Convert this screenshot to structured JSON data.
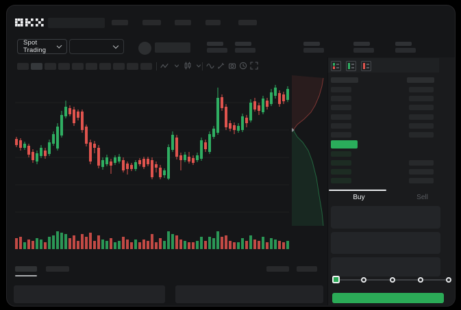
{
  "window": {
    "title_logo": "OKX"
  },
  "colors": {
    "up": "#2fae62",
    "down": "#e0544e",
    "accent": "#2bab57",
    "screen_bg": "#151618",
    "panel_bg": "#1a1b1d",
    "spread_green": "#2aad5b"
  },
  "market_selector": {
    "label": "Spot Trading"
  },
  "toolbar": {
    "icon_names": [
      "zigzag-icon",
      "chevron-down-icon",
      "candles-icon",
      "chevron-down-icon",
      "wave-icon",
      "pencil-icon",
      "camera-icon",
      "clock-icon",
      "fullscreen-icon"
    ]
  },
  "orderbook": {
    "view_modes": [
      "book-split-view",
      "book-bids-view",
      "book-asks-view"
    ],
    "ask_row_count": 6,
    "bid_row_count": 4
  },
  "trade_tabs": {
    "buy": "Buy",
    "sell": "Sell"
  },
  "trade_form": {
    "field_count": 3,
    "slider_stops": [
      0,
      25,
      50,
      75,
      100
    ],
    "slider_value": 0,
    "submit_label": ""
  },
  "skeleton": {
    "topnav_count": 5,
    "toolbar_block_count": 10,
    "stat_group_count": 5
  },
  "chart_data": [
    {
      "type": "candlestick",
      "title": "",
      "note": "skeleton trading chart - no axis labels visible in screenshot",
      "units": "relative price units",
      "candle_format": "[open, high, low, close, volume]",
      "x_step": 6,
      "grid_lines": 5,
      "candles": [
        [
          137,
          140,
          125,
          128,
          8
        ],
        [
          135,
          138,
          120,
          124,
          9
        ],
        [
          124,
          133,
          121,
          130,
          5
        ],
        [
          127,
          130,
          110,
          114,
          7
        ],
        [
          118,
          122,
          102,
          106,
          6
        ],
        [
          104,
          120,
          100,
          116,
          8
        ],
        [
          112,
          128,
          109,
          124,
          7
        ],
        [
          120,
          124,
          108,
          112,
          5
        ],
        [
          115,
          136,
          112,
          132,
          9
        ],
        [
          130,
          148,
          127,
          144,
          10
        ],
        [
          123,
          160,
          120,
          155,
          13
        ],
        [
          142,
          178,
          139,
          172,
          12
        ],
        [
          170,
          193,
          167,
          184,
          11
        ],
        [
          182,
          186,
          170,
          173,
          8
        ],
        [
          180,
          184,
          156,
          160,
          10
        ],
        [
          177,
          180,
          164,
          168,
          6
        ],
        [
          177,
          180,
          146,
          150,
          11
        ],
        [
          155,
          158,
          126,
          130,
          9
        ],
        [
          132,
          136,
          100,
          104,
          12
        ],
        [
          130,
          134,
          116,
          124,
          6
        ],
        [
          124,
          128,
          94,
          98,
          10
        ],
        [
          96,
          110,
          92,
          106,
          7
        ],
        [
          100,
          114,
          97,
          110,
          6
        ],
        [
          104,
          108,
          86,
          98,
          8
        ],
        [
          102,
          113,
          99,
          110,
          5
        ],
        [
          104,
          115,
          101,
          111,
          6
        ],
        [
          106,
          110,
          88,
          91,
          9
        ],
        [
          101,
          104,
          85,
          93,
          7
        ],
        [
          99,
          102,
          90,
          93,
          5
        ],
        [
          93,
          106,
          90,
          103,
          7
        ],
        [
          106,
          109,
          97,
          100,
          5
        ],
        [
          108,
          111,
          93,
          96,
          7
        ],
        [
          108,
          111,
          97,
          100,
          6
        ],
        [
          106,
          110,
          78,
          81,
          11
        ],
        [
          100,
          104,
          88,
          95,
          5
        ],
        [
          95,
          99,
          78,
          81,
          8
        ],
        [
          84,
          94,
          80,
          91,
          6
        ],
        [
          79,
          129,
          77,
          125,
          13
        ],
        [
          121,
          148,
          118,
          143,
          11
        ],
        [
          139,
          143,
          107,
          111,
          10
        ],
        [
          113,
          117,
          91,
          106,
          7
        ],
        [
          106,
          118,
          103,
          114,
          6
        ],
        [
          111,
          118,
          101,
          104,
          5
        ],
        [
          109,
          113,
          99,
          102,
          5
        ],
        [
          106,
          117,
          103,
          113,
          6
        ],
        [
          108,
          139,
          105,
          135,
          9
        ],
        [
          132,
          136,
          118,
          122,
          6
        ],
        [
          118,
          148,
          115,
          144,
          9
        ],
        [
          140,
          156,
          137,
          152,
          8
        ],
        [
          146,
          212,
          143,
          197,
          13
        ],
        [
          198,
          202,
          178,
          182,
          9
        ],
        [
          184,
          188,
          150,
          154,
          10
        ],
        [
          160,
          164,
          148,
          152,
          6
        ],
        [
          157,
          161,
          144,
          150,
          5
        ],
        [
          149,
          160,
          146,
          156,
          5
        ],
        [
          150,
          174,
          147,
          170,
          8
        ],
        [
          168,
          172,
          154,
          160,
          6
        ],
        [
          164,
          195,
          161,
          190,
          10
        ],
        [
          192,
          197,
          177,
          180,
          7
        ],
        [
          186,
          190,
          172,
          178,
          6
        ],
        [
          176,
          200,
          173,
          196,
          9
        ],
        [
          193,
          197,
          180,
          184,
          5
        ],
        [
          188,
          210,
          185,
          205,
          8
        ],
        [
          200,
          216,
          196,
          212,
          7
        ],
        [
          204,
          208,
          184,
          188,
          6
        ],
        [
          202,
          206,
          188,
          192,
          5
        ],
        [
          194,
          214,
          191,
          210,
          6
        ]
      ]
    },
    {
      "type": "area",
      "name": "market-depth",
      "orientation": "vertical",
      "asks_line": [
        [
          46,
          4
        ],
        [
          44,
          16
        ],
        [
          40,
          30
        ],
        [
          34,
          44
        ],
        [
          28,
          54
        ],
        [
          18,
          64
        ],
        [
          8,
          72
        ],
        [
          2,
          80
        ]
      ],
      "bids_line": [
        [
          2,
          80
        ],
        [
          8,
          90
        ],
        [
          16,
          98
        ],
        [
          24,
          110
        ],
        [
          30,
          126
        ],
        [
          36,
          150
        ],
        [
          40,
          176
        ],
        [
          44,
          200
        ],
        [
          46,
          220
        ]
      ]
    }
  ]
}
